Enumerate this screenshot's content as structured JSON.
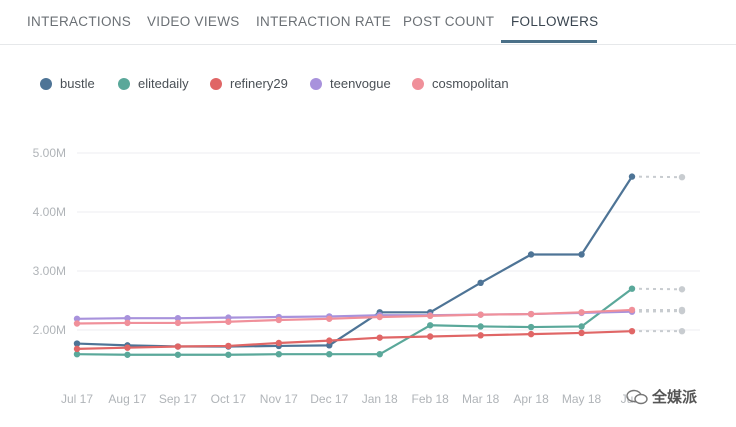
{
  "tabs": [
    {
      "label": "INTERACTIONS",
      "active": false
    },
    {
      "label": "VIDEO VIEWS",
      "active": false
    },
    {
      "label": "INTERACTION RATE",
      "active": false
    },
    {
      "label": "POST COUNT",
      "active": false
    },
    {
      "label": "FOLLOWERS",
      "active": true
    }
  ],
  "watermark": "全媒派",
  "chart_data": {
    "type": "line",
    "title": "",
    "xlabel": "",
    "ylabel": "",
    "categories": [
      "Jul 17",
      "Aug 17",
      "Sep 17",
      "Oct 17",
      "Nov 17",
      "Dec 17",
      "Jan 18",
      "Feb 18",
      "Mar 18",
      "Apr 18",
      "May 18",
      "Jun 18"
    ],
    "x_tick_labels": [
      "Jul 17",
      "Aug 17",
      "Sep 17",
      "Oct 17",
      "Nov 17",
      "Dec 17",
      "Jan 18",
      "Feb 18",
      "Mar 18",
      "Apr 18",
      "May 18",
      "Ju..."
    ],
    "y_ticks": [
      "2.00M",
      "3.00M",
      "4.00M",
      "5.00M"
    ],
    "y_tick_values": [
      2000000,
      3000000,
      4000000,
      5000000
    ],
    "ylim": [
      1200000,
      5400000
    ],
    "grid": true,
    "legend_position": "top-left",
    "series": [
      {
        "name": "bustle",
        "color": "#4e7496",
        "values": [
          1770000,
          1740000,
          1720000,
          1720000,
          1730000,
          1740000,
          2300000,
          2300000,
          2800000,
          3280000,
          3280000,
          4600000
        ],
        "projection": 4590000
      },
      {
        "name": "elitedaily",
        "color": "#5aa89a",
        "values": [
          1590000,
          1580000,
          1580000,
          1580000,
          1590000,
          1590000,
          1590000,
          2080000,
          2060000,
          2050000,
          2060000,
          2700000
        ],
        "projection": 2690000
      },
      {
        "name": "refinery29",
        "color": "#e06666",
        "values": [
          1680000,
          1700000,
          1720000,
          1730000,
          1780000,
          1820000,
          1870000,
          1890000,
          1910000,
          1930000,
          1950000,
          1980000
        ],
        "projection": 1980000
      },
      {
        "name": "teenvogue",
        "color": "#a892dc",
        "values": [
          2190000,
          2200000,
          2200000,
          2210000,
          2220000,
          2230000,
          2250000,
          2250000,
          2260000,
          2270000,
          2290000,
          2310000
        ],
        "projection": 2320000
      },
      {
        "name": "cosmopolitan",
        "color": "#f0909a",
        "values": [
          2110000,
          2120000,
          2120000,
          2140000,
          2170000,
          2190000,
          2220000,
          2240000,
          2260000,
          2270000,
          2300000,
          2340000
        ],
        "projection": 2340000
      }
    ],
    "projection_color": "#c8ccd0"
  }
}
